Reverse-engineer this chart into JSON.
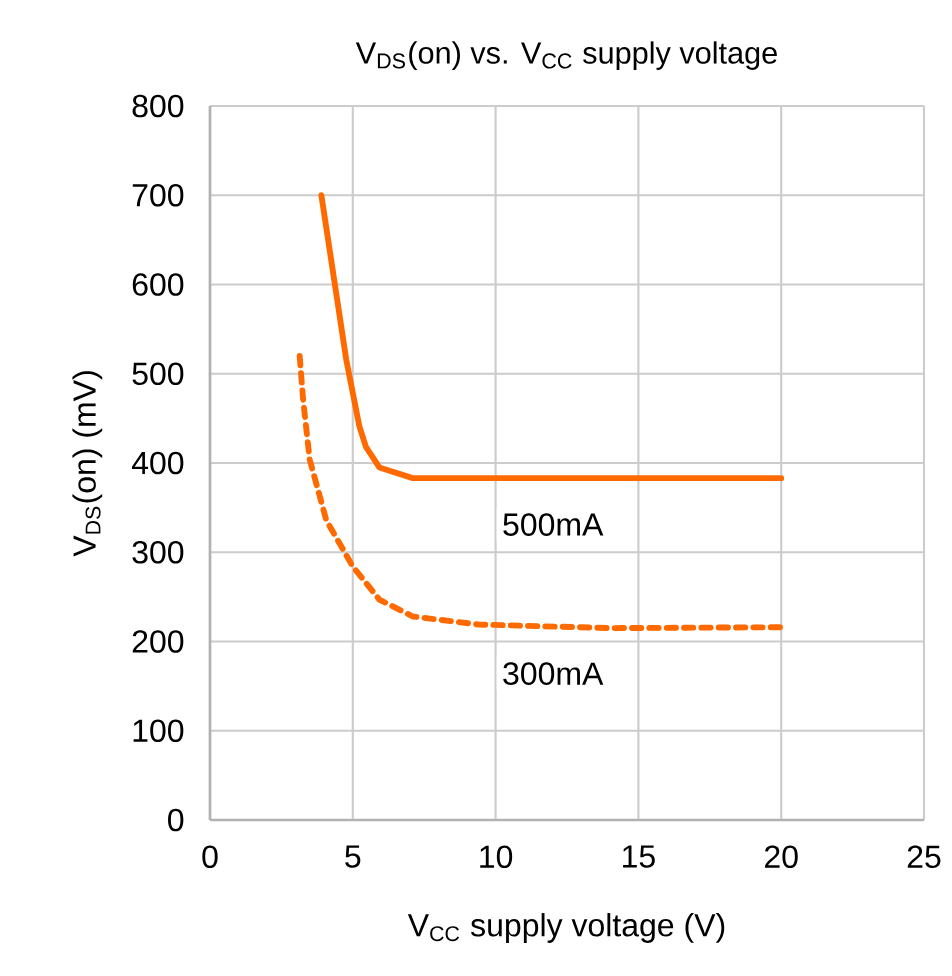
{
  "chart_data": {
    "type": "line",
    "title": "V$_{DS}$(on) vs. V$_{CC}$ supply voltage",
    "xlabel": "V$_{CC}$ supply voltage (V)",
    "ylabel": "V$_{DS}$(on) (mV)",
    "xlim": [
      0,
      25
    ],
    "ylim": [
      0,
      800
    ],
    "xticks": [
      0,
      5,
      10,
      15,
      20,
      25
    ],
    "yticks": [
      0,
      100,
      200,
      300,
      400,
      500,
      600,
      700,
      800
    ],
    "grid": true,
    "marker": "none",
    "series": [
      {
        "name": "500mA",
        "color": "#ff6a00",
        "line_style": "solid",
        "x": [
          3.9,
          4.77,
          5.23,
          5.46,
          5.93,
          7.1,
          10,
          15,
          20
        ],
        "values": [
          700,
          516,
          441,
          418,
          395,
          383,
          383,
          383,
          383
        ]
      },
      {
        "name": "300mA",
        "color": "#ff6a00",
        "line_style": "dashed",
        "x": [
          3.14,
          3.26,
          3.49,
          4.07,
          5.0,
          5.93,
          7.1,
          9.4,
          14.1,
          20
        ],
        "values": [
          520,
          471,
          404,
          336,
          284,
          247,
          228,
          219,
          215,
          216
        ]
      }
    ]
  }
}
